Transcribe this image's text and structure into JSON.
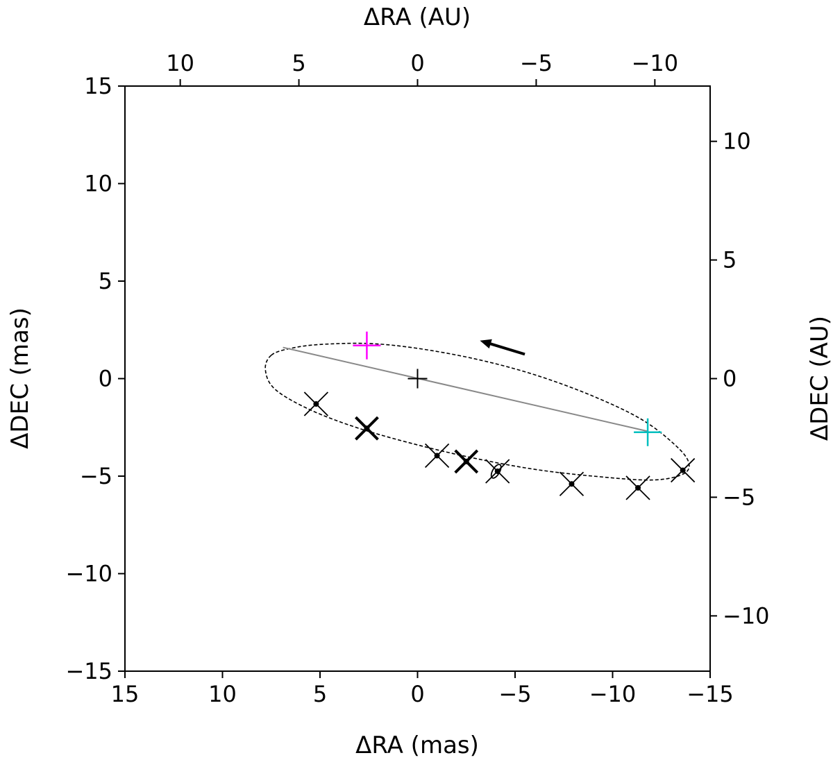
{
  "chart_data": {
    "type": "scatter",
    "title": "",
    "xlabel_bottom": "ΔRA (mas)",
    "xlabel_top": "ΔRA (AU)",
    "ylabel_left": "ΔDEC (mas)",
    "ylabel_right": "ΔDEC (AU)",
    "xlim_mas": [
      15,
      -15
    ],
    "ylim_mas": [
      -15,
      15
    ],
    "x_ticks_mas": [
      15,
      10,
      5,
      0,
      -5,
      -10,
      -15
    ],
    "x_tick_labels_mas": [
      "15",
      "10",
      "5",
      "0",
      "−5",
      "−10",
      "−15"
    ],
    "y_ticks_mas": [
      15,
      10,
      5,
      0,
      -5,
      -10,
      -15
    ],
    "y_tick_labels_mas": [
      "15",
      "10",
      "5",
      "0",
      "−5",
      "−10",
      "−15"
    ],
    "x_ticks_au": [
      10,
      5,
      0,
      -5,
      -10
    ],
    "x_tick_labels_au": [
      "10",
      "5",
      "0",
      "−5",
      "−10"
    ],
    "y_ticks_au": [
      10,
      5,
      0,
      -5,
      -10
    ],
    "y_tick_labels_au": [
      "10",
      "5",
      "0",
      "−5",
      "−10"
    ],
    "au_per_mas": 0.822,
    "grid": false,
    "legend": "none",
    "orbit": {
      "style": "dashed",
      "color": "#000000",
      "points": [
        [
          7.5,
          1.2
        ],
        [
          6.5,
          1.55
        ],
        [
          5.0,
          1.75
        ],
        [
          2.5,
          1.8
        ],
        [
          0.0,
          1.55
        ],
        [
          -3.0,
          1.0
        ],
        [
          -6.0,
          0.2
        ],
        [
          -9.0,
          -0.9
        ],
        [
          -11.5,
          -2.1
        ],
        [
          -13.2,
          -3.4
        ],
        [
          -13.9,
          -4.3
        ],
        [
          -13.6,
          -4.9
        ],
        [
          -12.0,
          -5.2
        ],
        [
          -9.0,
          -5.0
        ],
        [
          -6.0,
          -4.65
        ],
        [
          -3.0,
          -4.1
        ],
        [
          0.0,
          -3.4
        ],
        [
          3.0,
          -2.55
        ],
        [
          5.5,
          -1.6
        ],
        [
          7.3,
          -0.55
        ],
        [
          7.8,
          0.45
        ],
        [
          7.5,
          1.2
        ]
      ]
    },
    "line_of_nodes": {
      "color": "#888888",
      "from": [
        6.9,
        1.6
      ],
      "to": [
        -11.8,
        -2.7
      ]
    },
    "center_marker": {
      "symbol": "plus",
      "color": "#000000",
      "x": 0.0,
      "y": 0.0
    },
    "node_markers": [
      {
        "symbol": "plus",
        "color": "#ff00ff",
        "x": 2.6,
        "y": 1.7
      },
      {
        "symbol": "plus",
        "color": "#00bfbf",
        "x": -11.8,
        "y": -2.75
      }
    ],
    "direction_arrow": {
      "color": "#000000",
      "from": [
        -5.5,
        1.25
      ],
      "to": [
        -3.2,
        1.95
      ]
    },
    "observations": [
      {
        "x": 5.2,
        "y": -1.3,
        "bold": false
      },
      {
        "x": 2.6,
        "y": -2.55,
        "bold": true
      },
      {
        "x": -1.0,
        "y": -3.95,
        "bold": false
      },
      {
        "x": -2.5,
        "y": -4.25,
        "bold": true
      },
      {
        "x": -4.1,
        "y": -4.75,
        "bold": false
      },
      {
        "x": -7.9,
        "y": -5.4,
        "bold": false
      },
      {
        "x": -11.3,
        "y": -5.6,
        "bold": false
      },
      {
        "x": -13.6,
        "y": -4.7,
        "bold": false
      }
    ]
  }
}
